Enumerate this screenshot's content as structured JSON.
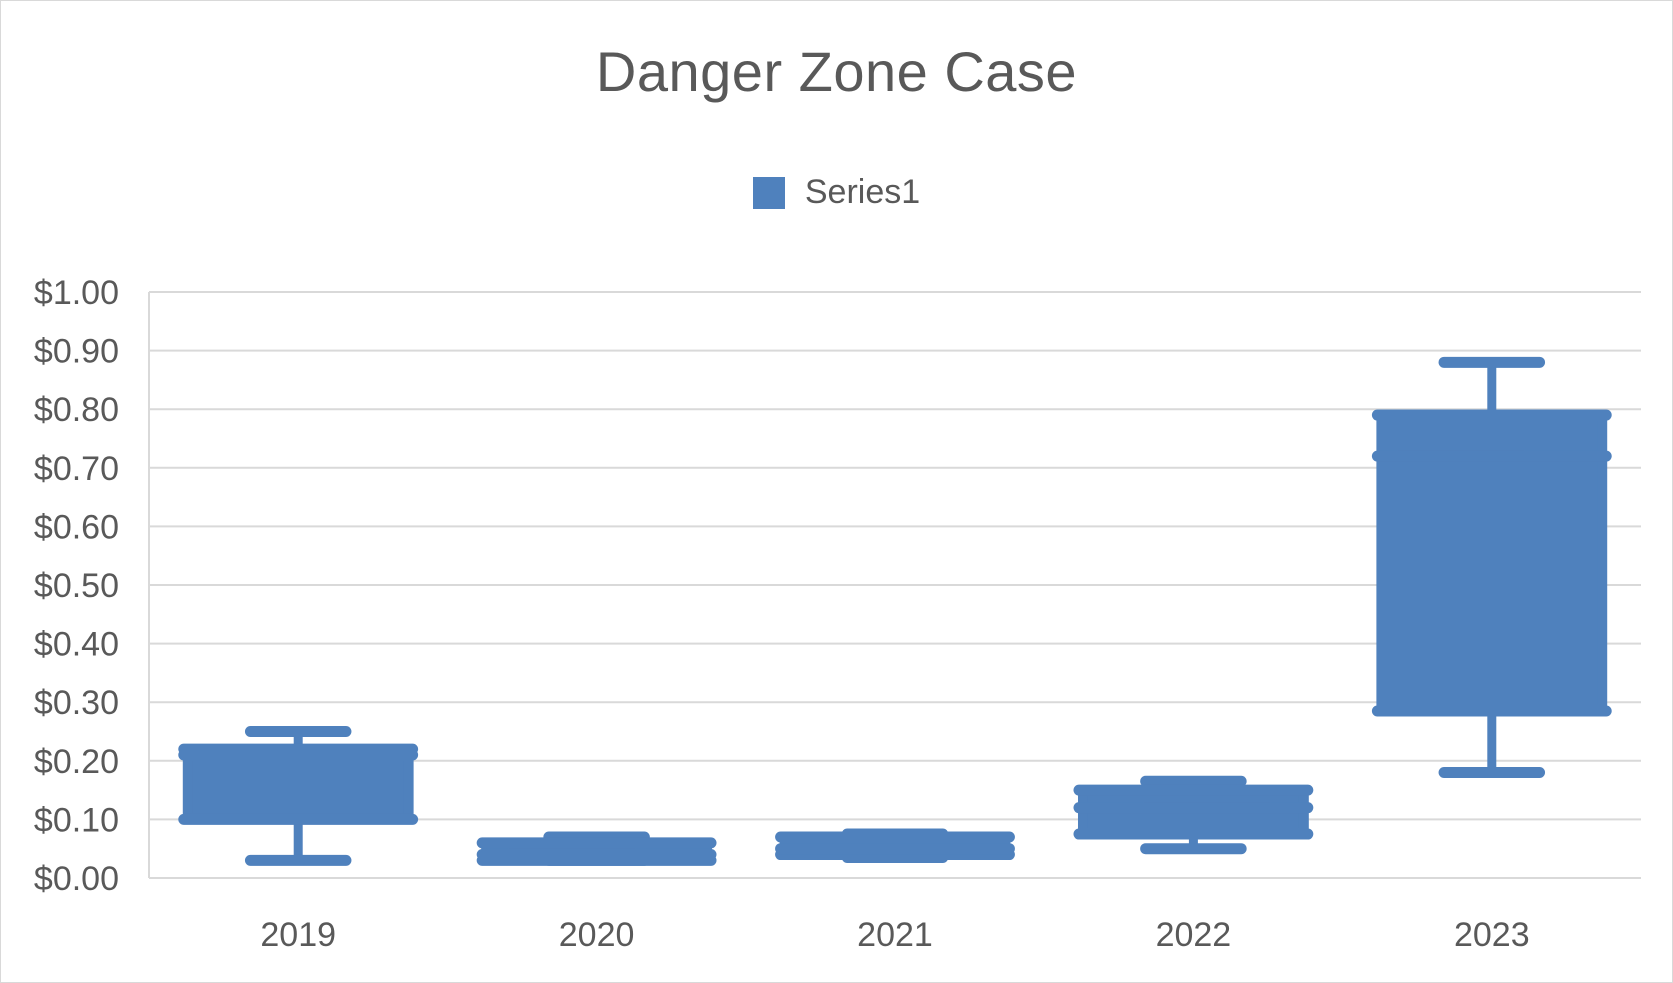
{
  "chart_data": {
    "type": "box",
    "title": "Danger Zone Case",
    "xlabel": "",
    "ylabel": "",
    "ylim": [
      0,
      1.0
    ],
    "ytick_step": 0.1,
    "ytick_labels": [
      "$0.00",
      "$0.10",
      "$0.20",
      "$0.30",
      "$0.40",
      "$0.50",
      "$0.60",
      "$0.70",
      "$0.80",
      "$0.90",
      "$1.00"
    ],
    "grid": true,
    "legend_position": "top-center",
    "categories": [
      "2019",
      "2020",
      "2021",
      "2022",
      "2023"
    ],
    "series": [
      {
        "name": "Series1",
        "color": "#4f81bd",
        "boxes": [
          {
            "category": "2019",
            "min": 0.03,
            "q1": 0.1,
            "median": 0.21,
            "q3": 0.22,
            "max": 0.25
          },
          {
            "category": "2020",
            "min": 0.03,
            "q1": 0.03,
            "median": 0.04,
            "q3": 0.06,
            "max": 0.07
          },
          {
            "category": "2021",
            "min": 0.035,
            "q1": 0.04,
            "median": 0.05,
            "q3": 0.07,
            "max": 0.075
          },
          {
            "category": "2022",
            "min": 0.05,
            "q1": 0.075,
            "median": 0.12,
            "q3": 0.15,
            "max": 0.165
          },
          {
            "category": "2023",
            "min": 0.18,
            "q1": 0.285,
            "median": 0.72,
            "q3": 0.79,
            "max": 0.88
          }
        ]
      }
    ]
  }
}
